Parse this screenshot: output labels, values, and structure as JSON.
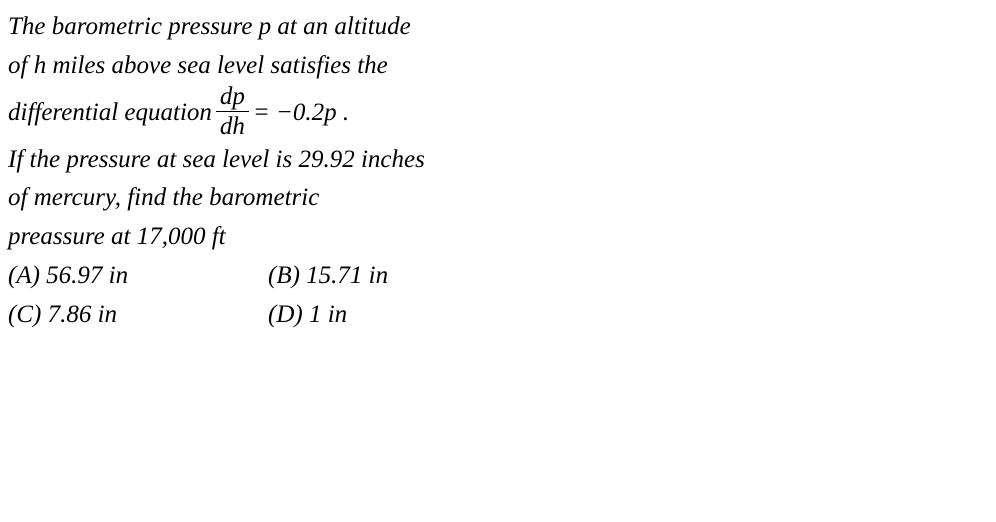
{
  "problem": {
    "line1": "The barometric pressure p at an altitude",
    "line2": "of h miles above sea level satisfies the",
    "line3_prefix": "differential equation ",
    "frac_num": "dp",
    "frac_den": "dh",
    "line3_suffix": " = −0.2p .",
    "line4": "If the pressure at sea level is 29.92 inches",
    "line5": "of mercury, find the barometric",
    "line6": "preassure at 17,000 ft"
  },
  "answers": {
    "a": "(A) 56.97 in",
    "b": "(B) 15.71 in",
    "c": "(C) 7.86 in",
    "d": "(D) 1 in"
  }
}
